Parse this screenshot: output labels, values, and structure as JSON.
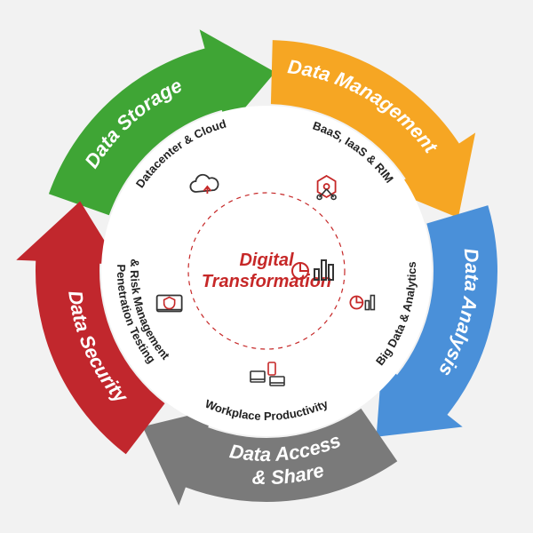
{
  "diagram": {
    "type": "circular-arrow-cycle",
    "background_color": "#f2f2f2",
    "center": {
      "title_line1": "Digital",
      "title_line2": "Transformation",
      "title_color": "#c62828",
      "title_fontsize": 20,
      "circle_stroke": "#c62828",
      "circle_fill": "#ffffff"
    },
    "outer_ring": {
      "band_width": 72,
      "outer_radius": 260,
      "segments": [
        {
          "id": "storage",
          "label": "Data Storage",
          "color": "#3fa535",
          "start_deg": -162,
          "span_deg": 72
        },
        {
          "id": "management",
          "label": "Data Management",
          "color": "#f6a623",
          "start_deg": -90,
          "span_deg": 72
        },
        {
          "id": "analysis",
          "label": "Data Analysis",
          "color": "#4a90d9",
          "start_deg": -18,
          "span_deg": 72
        },
        {
          "id": "access",
          "label": "Data Access",
          "label2": "& Share",
          "color": "#7a7a7a",
          "start_deg": 54,
          "span_deg": 72
        },
        {
          "id": "security",
          "label": "Data Security",
          "color": "#c1272d",
          "start_deg": 126,
          "span_deg": 72
        }
      ],
      "label_color": "#ffffff",
      "label_fontsize": 22,
      "arrowhead_len_deg": 14,
      "gap_deg": 3
    },
    "inner_ring": {
      "radius": 150,
      "items": [
        {
          "id": "datacenter",
          "label": "Datacenter & Cloud",
          "angle_deg": -126,
          "icon": "cloud"
        },
        {
          "id": "baas",
          "label": "BaaS, IaaS & RIM",
          "angle_deg": -54,
          "icon": "network"
        },
        {
          "id": "bigdata",
          "label": "Big Data & Analytics",
          "angle_deg": 18,
          "icon": "chart"
        },
        {
          "id": "workplace",
          "label": "Workplace Productivity",
          "angle_deg": 90,
          "icon": "devices"
        },
        {
          "id": "pentest",
          "label": "Penetration Testing",
          "label2": "& Risk Management",
          "angle_deg": 162,
          "icon": "shield"
        }
      ],
      "label_fontsize": 13,
      "label_color": "#222222",
      "icon_stroke": "#c62828",
      "icon_stroke2": "#333333"
    }
  }
}
